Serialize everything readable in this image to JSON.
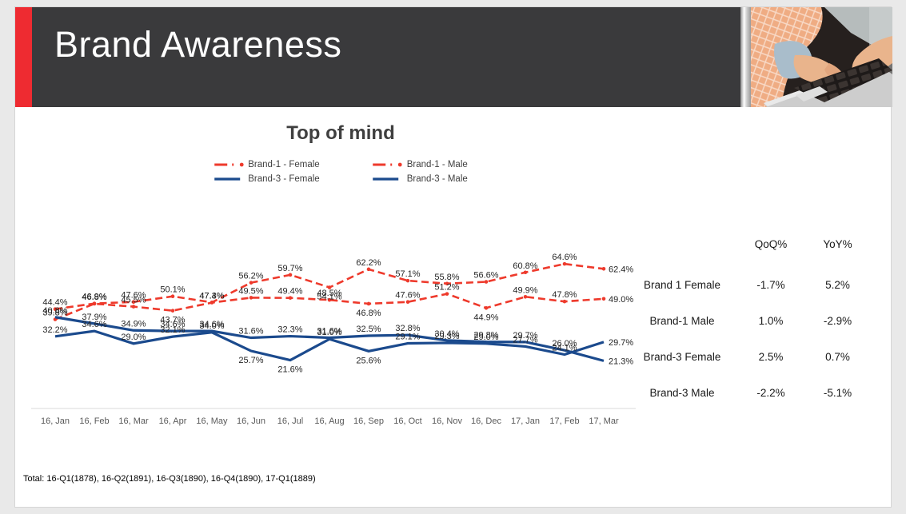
{
  "slide": {
    "title": "Brand Awareness",
    "footer": "Total: 16-Q1(1878), 16-Q2(1891), 16-Q3(1890), 16-Q4(1890), 17-Q1(1889)"
  },
  "colors": {
    "accent_red": "#ee2b31",
    "header_dark": "#3a3a3c",
    "brand1_red": "#ee3a2c",
    "brand3_blue": "#1b4a8d",
    "axis_gray": "#d9d9d9",
    "tick_text": "#595959",
    "label_text": "#262626"
  },
  "chart_data": {
    "type": "line",
    "title": "Top of mind",
    "categories": [
      "16, Jan",
      "16, Feb",
      "16, Mar",
      "16, Apr",
      "16, May",
      "16, Jun",
      "16, Jul",
      "16, Aug",
      "16, Sep",
      "16, Oct",
      "16, Nov",
      "16, Dec",
      "17, Jan",
      "17, Feb",
      "17, Mar"
    ],
    "ylim": [
      0,
      80
    ],
    "grid": false,
    "legend_position": "top",
    "value_format": "percent-1-decimal",
    "series": [
      {
        "name": "Brand-1 - Female",
        "color": "#ee3a2c",
        "style": "dashed",
        "marker": true,
        "values": [
          44.4,
          46.9,
          47.6,
          50.1,
          47.4,
          56.2,
          59.7,
          54.1,
          62.2,
          57.1,
          55.8,
          56.6,
          60.8,
          64.6,
          62.4
        ],
        "label_below": [
          7
        ]
      },
      {
        "name": "Brand-1 - Male",
        "color": "#ee3a2c",
        "style": "dashed",
        "marker": true,
        "values": [
          39.8,
          46.8,
          45.5,
          43.7,
          47.3,
          49.5,
          49.4,
          48.5,
          46.8,
          47.6,
          51.2,
          44.9,
          49.9,
          47.8,
          49.0
        ],
        "label_below": [
          3,
          8,
          11
        ]
      },
      {
        "name": "Brand-3 - Female",
        "color": "#1b4a8d",
        "style": "solid",
        "marker": false,
        "values": [
          40.8,
          37.9,
          34.9,
          34.6,
          34.6,
          31.6,
          32.3,
          31.6,
          32.5,
          32.8,
          30.4,
          29.8,
          29.7,
          26.0,
          21.3
        ],
        "label_below": []
      },
      {
        "name": "Brand-3 - Male",
        "color": "#1b4a8d",
        "style": "solid",
        "marker": false,
        "values": [
          32.2,
          34.6,
          29.0,
          32.1,
          34.0,
          25.7,
          21.6,
          31.0,
          25.6,
          29.1,
          29.3,
          29.0,
          27.7,
          24.1,
          29.7
        ],
        "label_below": [
          5,
          6,
          8
        ]
      }
    ]
  },
  "table": {
    "col_qoq": "QoQ%",
    "col_yoy": "YoY%",
    "rows": [
      {
        "label": "Brand 1 Female",
        "qoq": "-1.7%",
        "yoy": "5.2%"
      },
      {
        "label": "Brand-1 Male",
        "qoq": "1.0%",
        "yoy": "-2.9%"
      },
      {
        "label": "Brand-3 Female",
        "qoq": "2.5%",
        "yoy": "0.7%"
      },
      {
        "label": "Brand-3 Male",
        "qoq": "-2.2%",
        "yoy": "-5.1%"
      }
    ]
  }
}
